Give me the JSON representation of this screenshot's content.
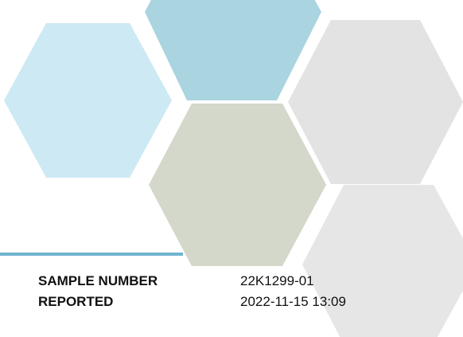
{
  "fields": [
    {
      "label": "SAMPLE NUMBER",
      "value": "22K1299-01"
    },
    {
      "label": "REPORTED",
      "value": "2022-11-15 13:09"
    }
  ]
}
